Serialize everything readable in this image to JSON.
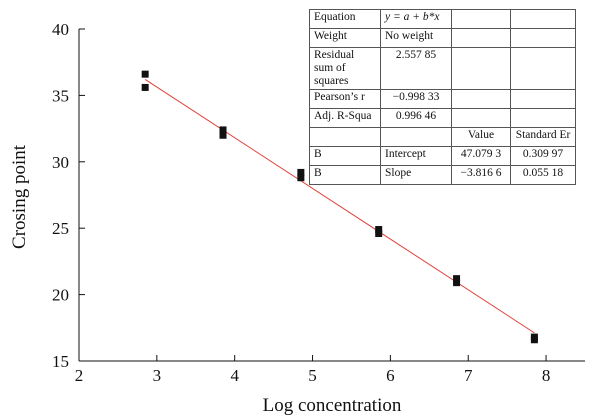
{
  "chart_data": {
    "type": "scatter",
    "xlabel": "Log concentration",
    "ylabel": "Crosing point",
    "xlim": [
      2,
      8.5
    ],
    "ylim": [
      15,
      40
    ],
    "x_ticks": [
      2,
      3,
      4,
      5,
      6,
      7,
      8
    ],
    "y_ticks": [
      15,
      20,
      25,
      30,
      35,
      40
    ],
    "x_tick_labels": [
      "2",
      "3",
      "4",
      "5",
      "6",
      "7",
      "8"
    ],
    "y_tick_labels": [
      "15",
      "20",
      "25",
      "30",
      "35",
      "40"
    ],
    "points": [
      {
        "x": 2.85,
        "y": 36.6
      },
      {
        "x": 2.85,
        "y": 35.6
      },
      {
        "x": 3.85,
        "y": 32.4
      },
      {
        "x": 3.85,
        "y": 32.0
      },
      {
        "x": 4.85,
        "y": 29.2
      },
      {
        "x": 4.85,
        "y": 28.8
      },
      {
        "x": 5.85,
        "y": 24.9
      },
      {
        "x": 5.85,
        "y": 24.6
      },
      {
        "x": 6.85,
        "y": 21.2
      },
      {
        "x": 6.85,
        "y": 20.9
      },
      {
        "x": 7.85,
        "y": 16.8
      },
      {
        "x": 7.85,
        "y": 16.6
      }
    ],
    "fit_line": {
      "intercept": 47.0793,
      "slope": -3.8166,
      "x_range": [
        2.85,
        7.85
      ],
      "color": "#e0403a"
    },
    "marker_color": "#111111",
    "grid": false,
    "fit_table": {
      "equation_label": "Equation",
      "equation_value": "y = a + b*x",
      "weight_label": "Weight",
      "weight_value": "No weight",
      "rss_label": "Residual sum of squares",
      "rss_value": "2.557 85",
      "pearson_label": "Pearson’s r",
      "pearson_value": "−0.998 33",
      "adjr_label": "Adj. R-Squa",
      "adjr_value": "0.996 46",
      "value_header": "Value",
      "stderr_header": "Standard Er",
      "rows": [
        {
          "var": "B",
          "param": "Intercept",
          "value": "47.079 3",
          "stderr": "0.309 97"
        },
        {
          "var": "B",
          "param": "Slope",
          "value": "−3.816 6",
          "stderr": "0.055 18"
        }
      ]
    }
  }
}
